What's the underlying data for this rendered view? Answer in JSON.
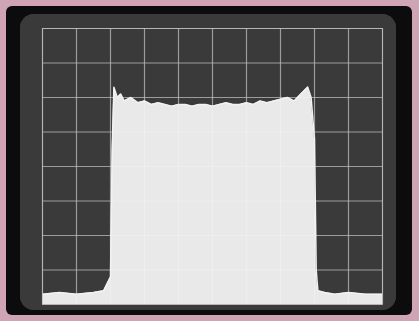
{
  "chart_data": {
    "type": "area",
    "x": [
      -5,
      -4.5,
      -4,
      -3.5,
      -3.2,
      -3.0,
      -2.95,
      -2.9,
      -2.8,
      -2.7,
      -2.6,
      -2.4,
      -2.2,
      -2,
      -1.8,
      -1.6,
      -1.4,
      -1.2,
      -1,
      -0.8,
      -0.6,
      -0.4,
      -0.2,
      0,
      0.2,
      0.4,
      0.6,
      0.8,
      1,
      1.2,
      1.4,
      1.6,
      1.8,
      2,
      2.2,
      2.4,
      2.6,
      2.8,
      2.9,
      3.0,
      3.05,
      3.1,
      3.3,
      3.6,
      4,
      4.5,
      5
    ],
    "values": [
      0.3,
      0.35,
      0.3,
      0.35,
      0.4,
      0.8,
      4.5,
      6.3,
      6.0,
      6.1,
      5.9,
      6.0,
      5.85,
      5.9,
      5.8,
      5.85,
      5.8,
      5.75,
      5.8,
      5.8,
      5.75,
      5.8,
      5.8,
      5.75,
      5.8,
      5.85,
      5.8,
      5.8,
      5.85,
      5.8,
      5.9,
      5.85,
      5.9,
      5.95,
      6.0,
      5.9,
      6.1,
      6.3,
      6.0,
      4.8,
      1.0,
      0.4,
      0.35,
      0.3,
      0.35,
      0.3,
      0.3
    ],
    "color": "#f2f2f2",
    "xlim": [
      -5,
      5
    ],
    "xticks": [
      -5,
      -4,
      -3,
      -2,
      -1,
      0,
      1,
      2,
      3,
      4,
      5
    ],
    "ylim": [
      0,
      8
    ],
    "yticks": [
      0,
      1,
      2,
      3,
      4,
      5,
      6,
      7,
      8
    ],
    "grid": true,
    "tick_labels": false
  }
}
